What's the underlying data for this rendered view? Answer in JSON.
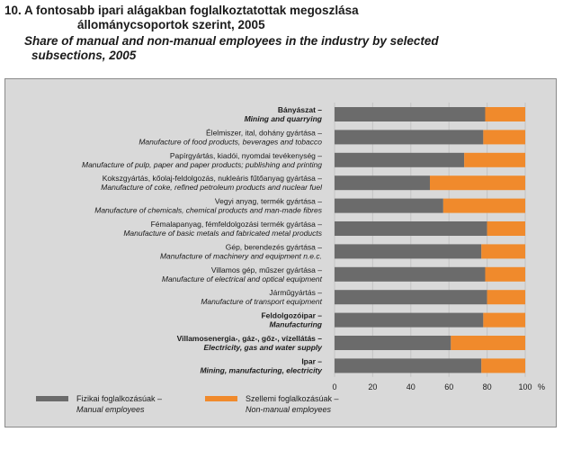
{
  "title": {
    "hu_line1": "10. A fontosabb ipari alágakban foglalkoztatottak megoszlása",
    "hu_line2": "állománycsoportok szerint, 2005",
    "en_line1": "Share of manual and non-manual employees in the industry by selected",
    "en_line2": "subsections, 2005"
  },
  "colors": {
    "manual": "#6b6b6b",
    "non_manual": "#f08a2c",
    "background": "#d9d9d9"
  },
  "chart_data": {
    "type": "bar",
    "orientation": "horizontal",
    "stacked": true,
    "xlim": [
      0,
      100
    ],
    "x_unit": "%",
    "x_ticks": [
      "0",
      "20",
      "40",
      "60",
      "80",
      "100"
    ],
    "categories": [
      {
        "hu": "Bányászat –",
        "en": "Mining and quarrying",
        "bold": true
      },
      {
        "hu": "Élelmiszer, ital, dohány gyártása –",
        "en": "Manufacture of food products, beverages and tobacco",
        "bold": false
      },
      {
        "hu": "Papírgyártás, kiadói, nyomdai tevékenység –",
        "en": "Manufacture of pulp, paper and paper products; publishing and printing",
        "bold": false
      },
      {
        "hu": "Kokszgyártás, kőolaj-feldolgozás, nukleáris fűtőanyag gyártása –",
        "en": "Manufacture of coke, refined petroleum products and nuclear fuel",
        "bold": false
      },
      {
        "hu": "Vegyi anyag, termék gyártása –",
        "en": "Manufacture of chemicals, chemical products and man-made fibres",
        "bold": false
      },
      {
        "hu": "Fémalapanyag, fémfeldolgozási termék gyártása –",
        "en": "Manufacture of basic metals and fabricated metal products",
        "bold": false
      },
      {
        "hu": "Gép, berendezés gyártása –",
        "en": "Manufacture of machinery and equipment n.e.c.",
        "bold": false
      },
      {
        "hu": "Villamos gép, műszer gyártása –",
        "en": "Manufacture of electrical and optical equipment",
        "bold": false
      },
      {
        "hu": "Járműgyártás –",
        "en": "Manufacture of transport equipment",
        "bold": false
      },
      {
        "hu": "Feldolgozóipar –",
        "en": "Manufacturing",
        "bold": true
      },
      {
        "hu": "Villamosenergia-, gáz-, gőz-, vízellátás –",
        "en": "Electricity, gas and water supply",
        "bold": true
      },
      {
        "hu": "Ipar –",
        "en": "Mining, manufacturing, electricity",
        "bold": true
      }
    ],
    "series": [
      {
        "name_hu": "Fizikai foglalkozásúak –",
        "name_en": "Manual employees",
        "color": "#6b6b6b",
        "values": [
          79,
          78,
          68,
          50,
          57,
          80,
          77,
          79,
          80,
          78,
          61,
          77
        ]
      },
      {
        "name_hu": "Szellemi foglalkozásúak –",
        "name_en": "Non-manual employees",
        "color": "#f08a2c",
        "values": [
          21,
          22,
          32,
          50,
          43,
          20,
          23,
          21,
          20,
          22,
          39,
          23
        ]
      }
    ],
    "legend_position": "bottom"
  }
}
